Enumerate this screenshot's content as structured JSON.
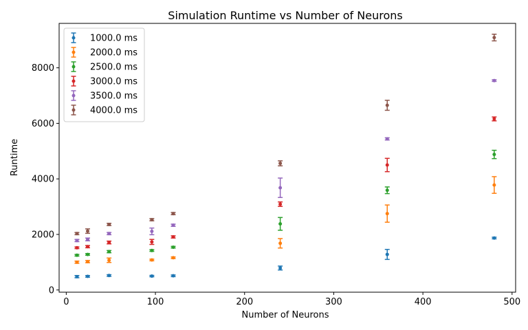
{
  "chart_data": {
    "type": "scatter",
    "title": "Simulation Runtime vs Number of Neurons",
    "xlabel": "Number of Neurons",
    "ylabel": "Runtime",
    "xlim": [
      -8,
      504
    ],
    "ylim": [
      -80,
      9600
    ],
    "xticks": [
      0,
      100,
      200,
      300,
      400,
      500
    ],
    "yticks": [
      0,
      2000,
      4000,
      6000,
      8000
    ],
    "grid": false,
    "legend_position": "top-left",
    "x": [
      12,
      24,
      48,
      96,
      120,
      240,
      360,
      480
    ],
    "series": [
      {
        "name": "1000.0 ms",
        "color": "#1f77b4",
        "values": [
          480,
          490,
          520,
          500,
          510,
          790,
          1280,
          1870
        ],
        "errors": [
          40,
          30,
          30,
          25,
          30,
          70,
          180,
          30
        ]
      },
      {
        "name": "2000.0 ms",
        "color": "#ff7f0e",
        "values": [
          1000,
          1020,
          1070,
          1080,
          1160,
          1680,
          2750,
          3780
        ],
        "errors": [
          40,
          40,
          80,
          30,
          30,
          170,
          310,
          300
        ]
      },
      {
        "name": "2500.0 ms",
        "color": "#2ca02c",
        "values": [
          1250,
          1280,
          1380,
          1420,
          1540,
          2380,
          3590,
          4880
        ],
        "errors": [
          30,
          30,
          40,
          30,
          30,
          230,
          120,
          150
        ]
      },
      {
        "name": "3000.0 ms",
        "color": "#d62728",
        "values": [
          1520,
          1560,
          1710,
          1730,
          1910,
          3090,
          4500,
          6160
        ],
        "errors": [
          30,
          40,
          50,
          90,
          40,
          80,
          240,
          70
        ]
      },
      {
        "name": "3500.0 ms",
        "color": "#9467bd",
        "values": [
          1780,
          1820,
          2030,
          2110,
          2330,
          3680,
          5440,
          7540
        ],
        "errors": [
          40,
          50,
          40,
          120,
          40,
          350,
          40,
          30
        ]
      },
      {
        "name": "4000.0 ms",
        "color": "#8c564b",
        "values": [
          2030,
          2120,
          2360,
          2530,
          2750,
          4560,
          6650,
          9090
        ],
        "errors": [
          40,
          80,
          40,
          40,
          40,
          90,
          180,
          120
        ]
      }
    ]
  }
}
